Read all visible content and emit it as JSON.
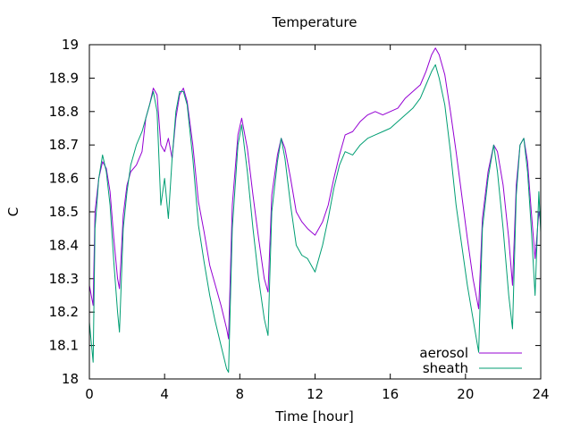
{
  "chart_data": {
    "type": "line",
    "title": "Temperature",
    "xlabel": "Time [hour]",
    "ylabel": "C",
    "xlim": [
      0,
      24
    ],
    "ylim": [
      18,
      19
    ],
    "xticks": [
      0,
      4,
      8,
      12,
      16,
      20,
      24
    ],
    "yticks": [
      18,
      18.1,
      18.2,
      18.3,
      18.4,
      18.5,
      18.6,
      18.7,
      18.8,
      18.9,
      19
    ],
    "grid": false,
    "legend": "bottom-right",
    "series": [
      {
        "name": "aerosol",
        "color": "#9400d3",
        "points": [
          [
            0.0,
            18.28
          ],
          [
            0.2,
            18.22
          ],
          [
            0.3,
            18.5
          ],
          [
            0.5,
            18.6
          ],
          [
            0.7,
            18.65
          ],
          [
            0.9,
            18.63
          ],
          [
            1.1,
            18.56
          ],
          [
            1.3,
            18.42
          ],
          [
            1.5,
            18.3
          ],
          [
            1.6,
            18.27
          ],
          [
            1.8,
            18.49
          ],
          [
            2.0,
            18.58
          ],
          [
            2.2,
            18.62
          ],
          [
            2.5,
            18.64
          ],
          [
            2.8,
            18.68
          ],
          [
            3.0,
            18.78
          ],
          [
            3.2,
            18.82
          ],
          [
            3.4,
            18.87
          ],
          [
            3.6,
            18.85
          ],
          [
            3.8,
            18.7
          ],
          [
            4.0,
            18.68
          ],
          [
            4.2,
            18.72
          ],
          [
            4.4,
            18.66
          ],
          [
            4.6,
            18.78
          ],
          [
            4.8,
            18.85
          ],
          [
            5.0,
            18.87
          ],
          [
            5.2,
            18.83
          ],
          [
            5.5,
            18.7
          ],
          [
            5.8,
            18.53
          ],
          [
            6.1,
            18.44
          ],
          [
            6.4,
            18.34
          ],
          [
            6.7,
            18.28
          ],
          [
            7.0,
            18.22
          ],
          [
            7.3,
            18.15
          ],
          [
            7.4,
            18.12
          ],
          [
            7.6,
            18.52
          ],
          [
            7.9,
            18.73
          ],
          [
            8.1,
            18.78
          ],
          [
            8.4,
            18.69
          ],
          [
            8.7,
            18.55
          ],
          [
            9.0,
            18.42
          ],
          [
            9.3,
            18.3
          ],
          [
            9.5,
            18.26
          ],
          [
            9.7,
            18.55
          ],
          [
            10.0,
            18.67
          ],
          [
            10.2,
            18.72
          ],
          [
            10.4,
            18.69
          ],
          [
            10.7,
            18.6
          ],
          [
            11.0,
            18.5
          ],
          [
            11.3,
            18.47
          ],
          [
            11.6,
            18.45
          ],
          [
            11.8,
            18.44
          ],
          [
            12.0,
            18.43
          ],
          [
            12.2,
            18.45
          ],
          [
            12.4,
            18.47
          ],
          [
            12.7,
            18.52
          ],
          [
            13.0,
            18.6
          ],
          [
            13.3,
            18.67
          ],
          [
            13.6,
            18.73
          ],
          [
            14.0,
            18.74
          ],
          [
            14.4,
            18.77
          ],
          [
            14.8,
            18.79
          ],
          [
            15.2,
            18.8
          ],
          [
            15.6,
            18.79
          ],
          [
            16.0,
            18.8
          ],
          [
            16.4,
            18.81
          ],
          [
            16.8,
            18.84
          ],
          [
            17.2,
            18.86
          ],
          [
            17.6,
            18.88
          ],
          [
            17.9,
            18.92
          ],
          [
            18.2,
            18.97
          ],
          [
            18.4,
            18.99
          ],
          [
            18.6,
            18.97
          ],
          [
            18.9,
            18.91
          ],
          [
            19.2,
            18.8
          ],
          [
            19.5,
            18.68
          ],
          [
            19.8,
            18.55
          ],
          [
            20.1,
            18.42
          ],
          [
            20.4,
            18.3
          ],
          [
            20.7,
            18.21
          ],
          [
            20.9,
            18.48
          ],
          [
            21.2,
            18.62
          ],
          [
            21.5,
            18.7
          ],
          [
            21.7,
            18.68
          ],
          [
            22.0,
            18.58
          ],
          [
            22.3,
            18.42
          ],
          [
            22.5,
            18.28
          ],
          [
            22.7,
            18.58
          ],
          [
            22.9,
            18.7
          ],
          [
            23.1,
            18.72
          ],
          [
            23.3,
            18.65
          ],
          [
            23.5,
            18.5
          ],
          [
            23.7,
            18.36
          ],
          [
            23.9,
            18.5
          ],
          [
            24.0,
            18.47
          ]
        ]
      },
      {
        "name": "sheath",
        "color": "#009e73",
        "points": [
          [
            0.0,
            18.17
          ],
          [
            0.2,
            18.05
          ],
          [
            0.3,
            18.45
          ],
          [
            0.5,
            18.6
          ],
          [
            0.7,
            18.67
          ],
          [
            0.9,
            18.62
          ],
          [
            1.1,
            18.52
          ],
          [
            1.3,
            18.35
          ],
          [
            1.5,
            18.2
          ],
          [
            1.6,
            18.14
          ],
          [
            1.8,
            18.45
          ],
          [
            2.0,
            18.56
          ],
          [
            2.2,
            18.64
          ],
          [
            2.5,
            18.7
          ],
          [
            2.8,
            18.74
          ],
          [
            3.0,
            18.78
          ],
          [
            3.2,
            18.82
          ],
          [
            3.4,
            18.86
          ],
          [
            3.6,
            18.8
          ],
          [
            3.8,
            18.52
          ],
          [
            4.0,
            18.6
          ],
          [
            4.2,
            18.48
          ],
          [
            4.4,
            18.66
          ],
          [
            4.6,
            18.8
          ],
          [
            4.8,
            18.86
          ],
          [
            5.0,
            18.86
          ],
          [
            5.2,
            18.82
          ],
          [
            5.5,
            18.66
          ],
          [
            5.8,
            18.46
          ],
          [
            6.1,
            18.35
          ],
          [
            6.4,
            18.25
          ],
          [
            6.7,
            18.17
          ],
          [
            7.0,
            18.1
          ],
          [
            7.3,
            18.03
          ],
          [
            7.4,
            18.02
          ],
          [
            7.6,
            18.45
          ],
          [
            7.9,
            18.7
          ],
          [
            8.1,
            18.76
          ],
          [
            8.4,
            18.62
          ],
          [
            8.7,
            18.45
          ],
          [
            9.0,
            18.3
          ],
          [
            9.3,
            18.18
          ],
          [
            9.5,
            18.13
          ],
          [
            9.7,
            18.5
          ],
          [
            10.0,
            18.65
          ],
          [
            10.2,
            18.72
          ],
          [
            10.4,
            18.66
          ],
          [
            10.7,
            18.52
          ],
          [
            11.0,
            18.4
          ],
          [
            11.3,
            18.37
          ],
          [
            11.6,
            18.36
          ],
          [
            11.8,
            18.34
          ],
          [
            12.0,
            18.32
          ],
          [
            12.2,
            18.36
          ],
          [
            12.4,
            18.4
          ],
          [
            12.7,
            18.48
          ],
          [
            13.0,
            18.57
          ],
          [
            13.3,
            18.64
          ],
          [
            13.6,
            18.68
          ],
          [
            14.0,
            18.67
          ],
          [
            14.4,
            18.7
          ],
          [
            14.8,
            18.72
          ],
          [
            15.2,
            18.73
          ],
          [
            15.6,
            18.74
          ],
          [
            16.0,
            18.75
          ],
          [
            16.4,
            18.77
          ],
          [
            16.8,
            18.79
          ],
          [
            17.2,
            18.81
          ],
          [
            17.6,
            18.84
          ],
          [
            17.9,
            18.88
          ],
          [
            18.2,
            18.92
          ],
          [
            18.4,
            18.94
          ],
          [
            18.6,
            18.9
          ],
          [
            18.9,
            18.82
          ],
          [
            19.2,
            18.68
          ],
          [
            19.5,
            18.52
          ],
          [
            19.8,
            18.4
          ],
          [
            20.1,
            18.28
          ],
          [
            20.4,
            18.18
          ],
          [
            20.7,
            18.08
          ],
          [
            20.9,
            18.45
          ],
          [
            21.2,
            18.6
          ],
          [
            21.5,
            18.7
          ],
          [
            21.7,
            18.62
          ],
          [
            22.0,
            18.45
          ],
          [
            22.3,
            18.25
          ],
          [
            22.5,
            18.15
          ],
          [
            22.7,
            18.55
          ],
          [
            22.9,
            18.7
          ],
          [
            23.1,
            18.72
          ],
          [
            23.3,
            18.62
          ],
          [
            23.5,
            18.45
          ],
          [
            23.7,
            18.25
          ],
          [
            23.9,
            18.56
          ],
          [
            24.0,
            18.44
          ]
        ]
      }
    ]
  }
}
